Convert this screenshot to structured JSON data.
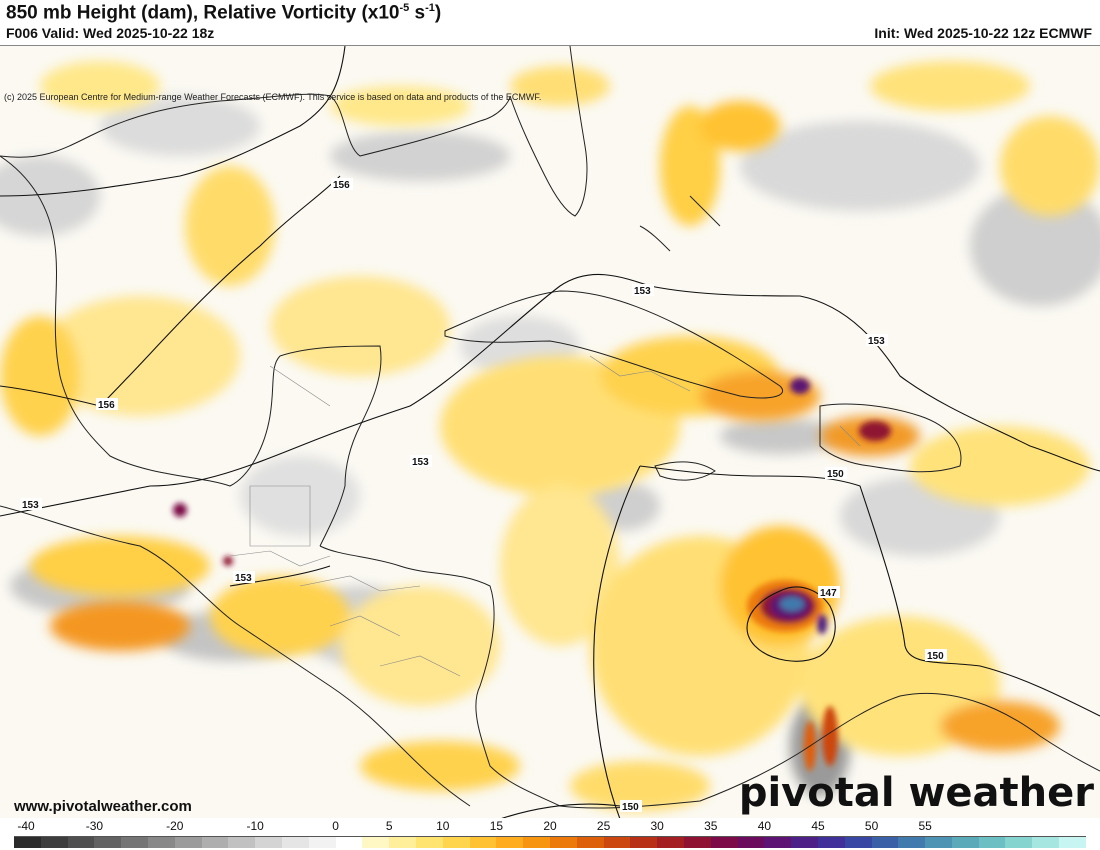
{
  "header": {
    "title_main": "850 mb Height (dam), Relative Vorticity (x10",
    "title_exp": "-5",
    "title_unit": " s",
    "title_exp2": "-1",
    "title_close": ")",
    "valid": "F006 Valid: Wed 2025-10-22 18z",
    "init": "Init: Wed 2025-10-22 12z ECMWF",
    "copyright": "(c) 2025 European Centre for Medium-range Weather Forecasts (ECMWF). This service is based on data and products of the ECMWF."
  },
  "footer": {
    "website": "www.pivotalweather.com",
    "logo": "pivotal weather"
  },
  "contours": [
    {
      "label": "156"
    },
    {
      "label": "156"
    },
    {
      "label": "153"
    },
    {
      "label": "153"
    },
    {
      "label": "153"
    },
    {
      "label": "153"
    },
    {
      "label": "153"
    },
    {
      "label": "150"
    },
    {
      "label": "150"
    },
    {
      "label": "147"
    },
    {
      "label": "150"
    }
  ],
  "colorbar": {
    "ticks": [
      "-40",
      "-30",
      "-20",
      "-10",
      "0",
      "5",
      "10",
      "15",
      "20",
      "25",
      "30",
      "35",
      "40",
      "45",
      "50",
      "55"
    ],
    "colors": [
      "#2b2b2b",
      "#3d3d3d",
      "#4f4f4f",
      "#626262",
      "#757575",
      "#888888",
      "#9b9b9b",
      "#aeaeae",
      "#c1c1c1",
      "#d4d4d4",
      "#e5e5e5",
      "#f2f2f2",
      "#ffffff",
      "#fff8c4",
      "#ffef9a",
      "#ffe470",
      "#ffd54d",
      "#ffc233",
      "#ffad1f",
      "#f79410",
      "#ec7a0a",
      "#de5f0a",
      "#cc460f",
      "#b83016",
      "#a31f22",
      "#8f1233",
      "#7d0a48",
      "#6b0b5e",
      "#5c1373",
      "#4d2087",
      "#3f3199",
      "#3847a3",
      "#3a60a8",
      "#417aad",
      "#4d93b3",
      "#5aaaba",
      "#6cc0c4",
      "#85d4d0",
      "#a6e6e1",
      "#c7f5f2"
    ]
  }
}
